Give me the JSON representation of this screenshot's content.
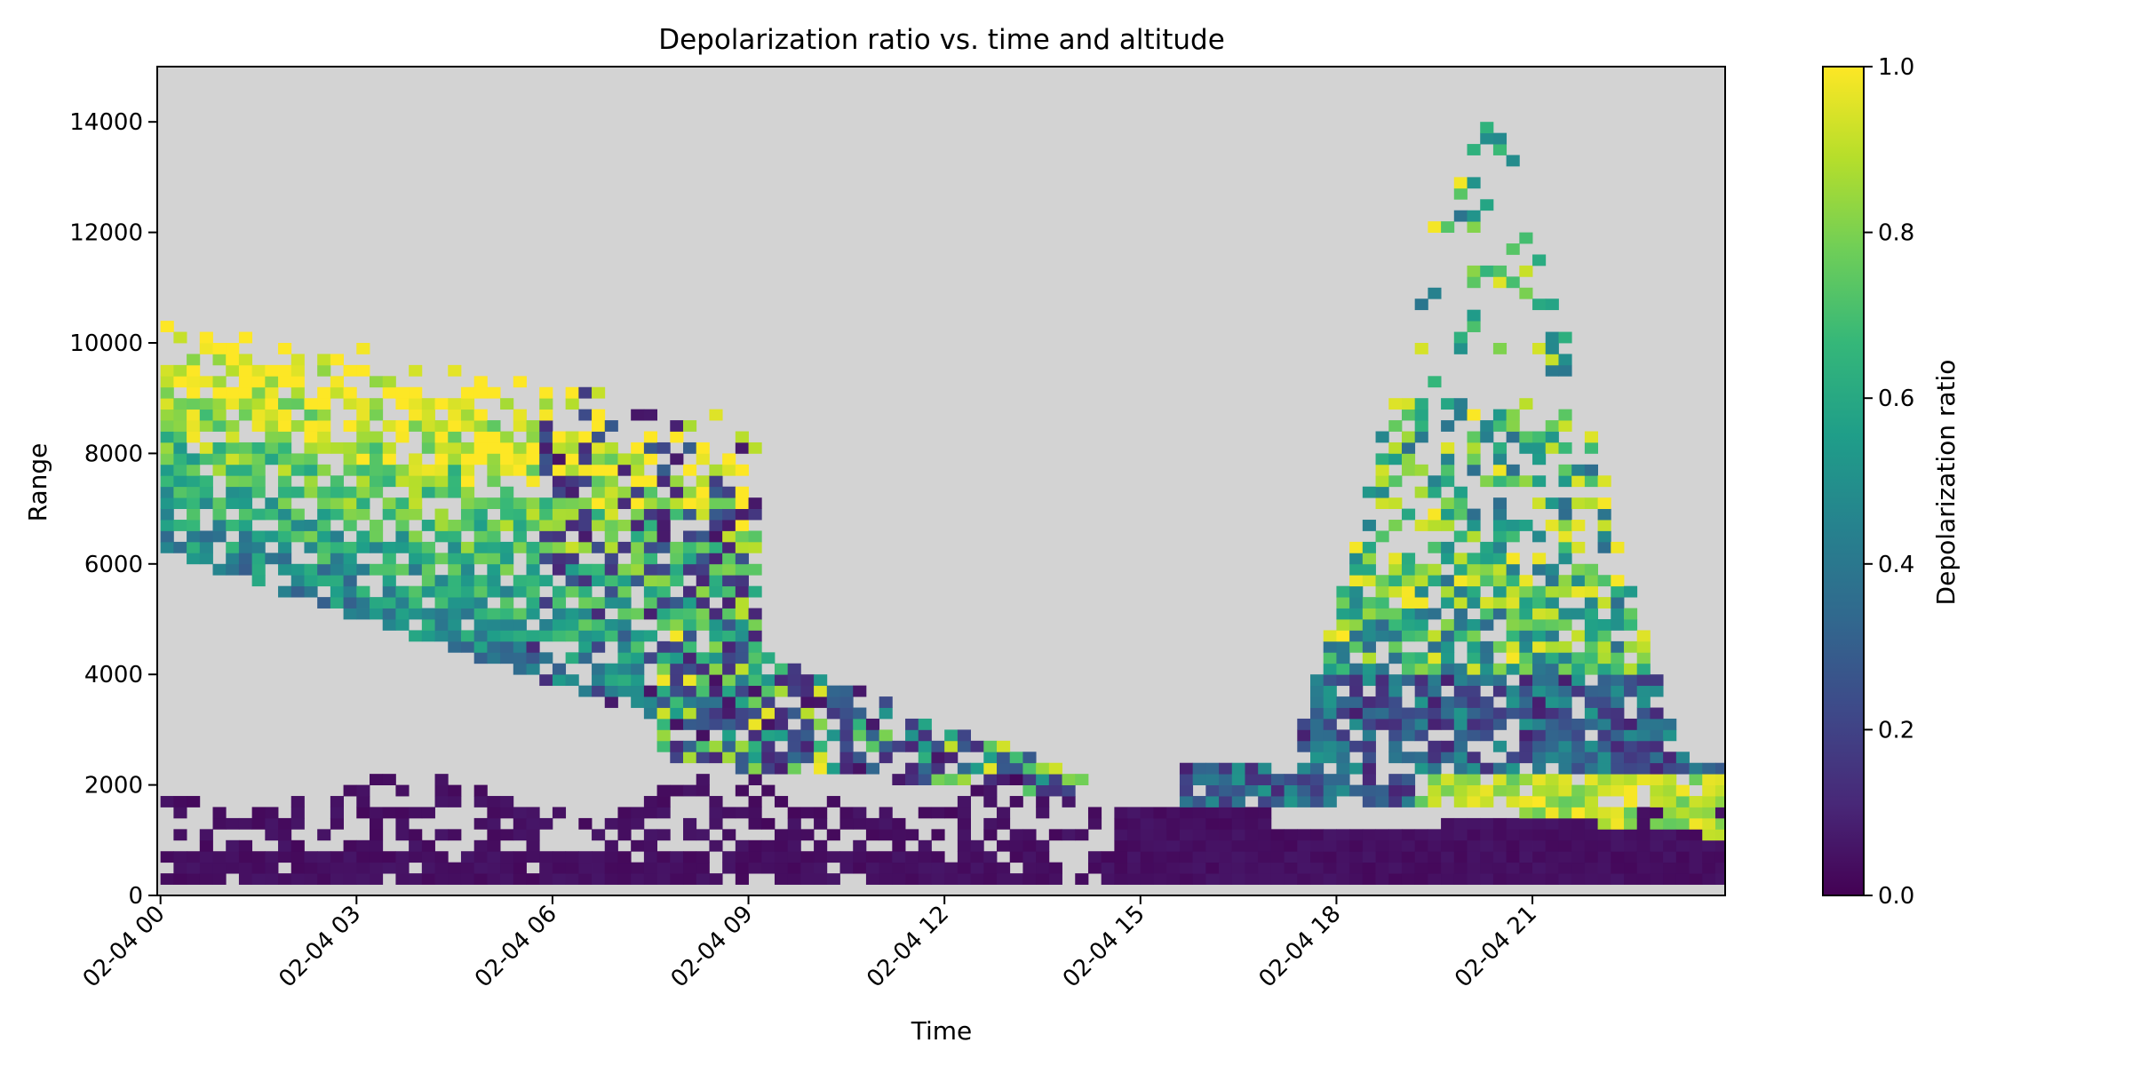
{
  "chart_data": {
    "type": "heatmap",
    "title": "Depolarization ratio vs. time and altitude",
    "xlabel": "Time",
    "ylabel": "Range",
    "x_ticks": [
      "02-04 00",
      "02-04 03",
      "02-04 06",
      "02-04 09",
      "02-04 12",
      "02-04 15",
      "02-04 18",
      "02-04 21"
    ],
    "x_tick_hours": [
      0,
      3,
      6,
      9,
      12,
      15,
      18,
      21
    ],
    "xlim_hours": [
      -0.05,
      23.95
    ],
    "y_ticks": [
      0,
      2000,
      4000,
      6000,
      8000,
      10000,
      12000,
      14000
    ],
    "ylim": [
      0,
      15000
    ],
    "colorbar": {
      "label": "Depolarization ratio",
      "ticks": [
        "0.0",
        "0.2",
        "0.4",
        "0.6",
        "0.8",
        "1.0"
      ],
      "tick_values": [
        0,
        0.2,
        0.4,
        0.6,
        0.8,
        1.0
      ],
      "range": [
        0,
        1
      ],
      "colormap": "viridis"
    },
    "colors": {
      "background": "#d3d3d3",
      "viridis_stops": [
        "#440154",
        "#482878",
        "#3e4989",
        "#31688e",
        "#26828e",
        "#1f9e89",
        "#35b779",
        "#6ece58",
        "#b5de2b",
        "#fde725"
      ]
    },
    "grid": false,
    "cell_size": {
      "time_minutes": 12,
      "range_m": 200
    },
    "data_regions": [
      {
        "name": "morning cirrus layer",
        "time_hours": [
          0.0,
          9.0
        ],
        "top_m": [
          10600,
          10000,
          9400,
          8800
        ],
        "thickness_m": 3800,
        "base_descends_to_m": 2200,
        "value_range": [
          0.3,
          1.0
        ]
      },
      {
        "name": "descending mid-level layer",
        "time_hours": [
          7.5,
          14.0
        ],
        "range_m": [
          1500,
          5000
        ],
        "value_range": [
          0.0,
          0.9
        ]
      },
      {
        "name": "evening convective cloud",
        "time_hours": [
          15.5,
          24.0
        ],
        "range_m": [
          1500,
          13800
        ],
        "value_range": [
          0.0,
          1.0
        ]
      },
      {
        "name": "boundary layer",
        "time_hours": [
          0.0,
          24.0
        ],
        "range_m": [
          200,
          2200
        ],
        "value_range": [
          0.0,
          0.05
        ]
      }
    ]
  }
}
